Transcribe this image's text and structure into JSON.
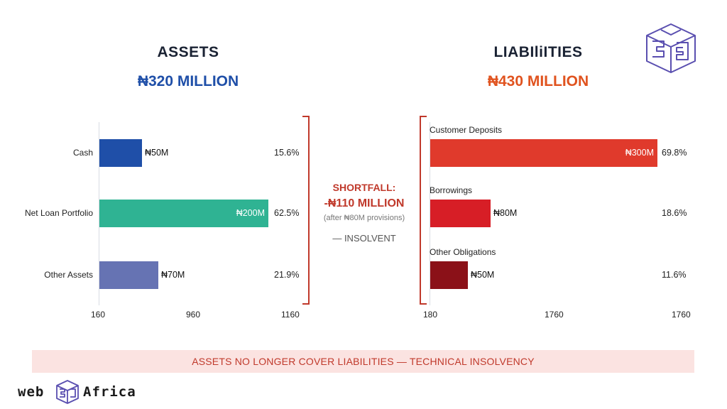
{
  "chart_data": [
    {
      "type": "bar",
      "orientation": "horizontal",
      "title": "ASSETS",
      "total": "₦320 MILLION",
      "categories": [
        "Cash",
        "Net Loan Portfolio",
        "Other Assets"
      ],
      "values": [
        50,
        200,
        70
      ],
      "value_labels": [
        "₦50M",
        "₦200M",
        "₦70M"
      ],
      "percent_labels": [
        "15.6%",
        "62.5%",
        "21.9%"
      ],
      "colors": [
        "#1f4fa8",
        "#2fb393",
        "#6673b3"
      ],
      "x_ticks": [
        "160",
        "960",
        "1160"
      ],
      "xlim": [
        0,
        300
      ]
    },
    {
      "type": "bar",
      "orientation": "horizontal",
      "title": "LIABIliITIES",
      "total": "₦430 MILLION",
      "categories": [
        "Customer Deposits",
        "Borrowings",
        "Other Obligations"
      ],
      "values": [
        300,
        80,
        50
      ],
      "value_labels": [
        "₦300M",
        "₦80M",
        "₦50M"
      ],
      "percent_labels": [
        "69.8%",
        "18.6%",
        "11.6%"
      ],
      "colors": [
        "#e03a2c",
        "#d71e26",
        "#8b1118"
      ],
      "x_ticks": [
        "180",
        "1760",
        "1760"
      ],
      "xlim": [
        0,
        330
      ]
    }
  ],
  "assets_total_color": "#1f4fa8",
  "liabilities_total_color": "#e0531f",
  "shortfall": {
    "line1": "SHORTFALL:",
    "line2": "-₦110 MILLION",
    "note": "(after ₦80M provisions)",
    "status": "— INSOLVENT"
  },
  "banner": "ASSETS NO LONGER COVER LIABILITIES — TECHNICAL INSOLVENCY",
  "brand": {
    "left": "web",
    "right": "Africa",
    "logo_icon": "cube-3-logo-icon"
  }
}
